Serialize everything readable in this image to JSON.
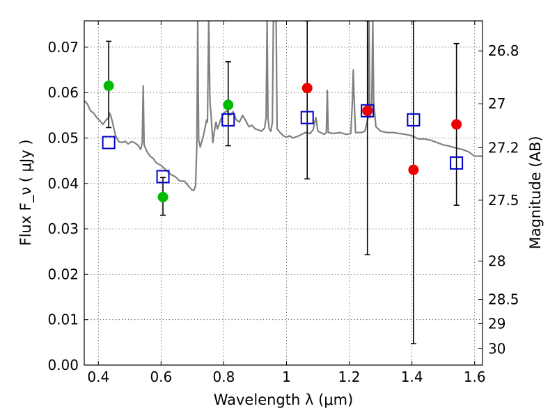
{
  "chart_data": {
    "type": "scatter",
    "title": "",
    "xlabel": "Wavelength  λ (μm)",
    "ylabel": "Flux  F_ν  ( μJy )",
    "ylabel_right": "Magnitude (AB)",
    "xlim": [
      0.355,
      1.625
    ],
    "ylim": [
      0.0,
      0.0758
    ],
    "grid": true,
    "x_ticks": [
      {
        "value": 0.4,
        "label": "0.4"
      },
      {
        "value": 0.6,
        "label": "0.6"
      },
      {
        "value": 0.8,
        "label": "0.8"
      },
      {
        "value": 1.0,
        "label": "1"
      },
      {
        "value": 1.2,
        "label": "1.2"
      },
      {
        "value": 1.4,
        "label": "1.4"
      },
      {
        "value": 1.6,
        "label": "1.6"
      }
    ],
    "y_ticks": [
      {
        "value": 0.0,
        "label": "0.00"
      },
      {
        "value": 0.01,
        "label": "0.01"
      },
      {
        "value": 0.02,
        "label": "0.02"
      },
      {
        "value": 0.03,
        "label": "0.03"
      },
      {
        "value": 0.04,
        "label": "0.04"
      },
      {
        "value": 0.05,
        "label": "0.05"
      },
      {
        "value": 0.06,
        "label": "0.06"
      },
      {
        "value": 0.07,
        "label": "0.07"
      }
    ],
    "right_ticks": [
      {
        "magnitude": 26.8,
        "label": "26.8"
      },
      {
        "magnitude": 27.0,
        "label": "27"
      },
      {
        "magnitude": 27.2,
        "label": "27.2"
      },
      {
        "magnitude": 27.5,
        "label": "27.5"
      },
      {
        "magnitude": 28.0,
        "label": "28"
      },
      {
        "magnitude": 28.5,
        "label": "28.5"
      },
      {
        "magnitude": 29.0,
        "label": "29"
      },
      {
        "magnitude": 30.0,
        "label": "30"
      }
    ],
    "colors": {
      "spectrum": "#808080",
      "green": "#00bb00",
      "red": "#ee0000",
      "model": "#0000cc",
      "errorbar": "#000000",
      "grid": "#555555"
    },
    "series": [
      {
        "type": "line",
        "points": [
          [
            0.355,
            0.0582
          ],
          [
            0.365,
            0.0575
          ],
          [
            0.375,
            0.056
          ],
          [
            0.385,
            0.0555
          ],
          [
            0.395,
            0.0545
          ],
          [
            0.405,
            0.0538
          ],
          [
            0.415,
            0.053
          ],
          [
            0.425,
            0.054
          ],
          [
            0.433,
            0.0545
          ],
          [
            0.436,
            0.0555
          ],
          [
            0.44,
            0.0548
          ],
          [
            0.445,
            0.0535
          ],
          [
            0.455,
            0.0505
          ],
          [
            0.465,
            0.0492
          ],
          [
            0.475,
            0.049
          ],
          [
            0.485,
            0.0493
          ],
          [
            0.495,
            0.0487
          ],
          [
            0.505,
            0.0492
          ],
          [
            0.515,
            0.049
          ],
          [
            0.525,
            0.0485
          ],
          [
            0.535,
            0.0475
          ],
          [
            0.54,
            0.049
          ],
          [
            0.543,
            0.0615
          ],
          [
            0.546,
            0.0485
          ],
          [
            0.555,
            0.047
          ],
          [
            0.565,
            0.046
          ],
          [
            0.575,
            0.0455
          ],
          [
            0.585,
            0.0445
          ],
          [
            0.6,
            0.044
          ],
          [
            0.615,
            0.043
          ],
          [
            0.63,
            0.042
          ],
          [
            0.645,
            0.0415
          ],
          [
            0.66,
            0.0405
          ],
          [
            0.675,
            0.0405
          ],
          [
            0.69,
            0.0392
          ],
          [
            0.7,
            0.0385
          ],
          [
            0.705,
            0.0385
          ],
          [
            0.71,
            0.0395
          ],
          [
            0.714,
            0.0485
          ],
          [
            0.717,
            0.0758
          ],
          [
            0.72,
            0.0495
          ],
          [
            0.725,
            0.048
          ],
          [
            0.735,
            0.0505
          ],
          [
            0.745,
            0.054
          ],
          [
            0.748,
            0.0535
          ],
          [
            0.752,
            0.0758
          ],
          [
            0.756,
            0.058
          ],
          [
            0.76,
            0.0545
          ],
          [
            0.765,
            0.049
          ],
          [
            0.77,
            0.0515
          ],
          [
            0.775,
            0.0535
          ],
          [
            0.78,
            0.052
          ],
          [
            0.79,
            0.054
          ],
          [
            0.8,
            0.0555
          ],
          [
            0.81,
            0.056
          ],
          [
            0.82,
            0.055
          ],
          [
            0.83,
            0.0558
          ],
          [
            0.84,
            0.054
          ],
          [
            0.85,
            0.0535
          ],
          [
            0.86,
            0.055
          ],
          [
            0.87,
            0.0538
          ],
          [
            0.88,
            0.0525
          ],
          [
            0.89,
            0.0528
          ],
          [
            0.9,
            0.052
          ],
          [
            0.91,
            0.0518
          ],
          [
            0.92,
            0.0515
          ],
          [
            0.93,
            0.0522
          ],
          [
            0.935,
            0.0545
          ],
          [
            0.938,
            0.0758
          ],
          [
            0.941,
            0.0545
          ],
          [
            0.945,
            0.052
          ],
          [
            0.95,
            0.0515
          ],
          [
            0.955,
            0.0535
          ],
          [
            0.958,
            0.0758
          ],
          [
            0.961,
            0.0758
          ],
          [
            0.964,
            0.0758
          ],
          [
            0.967,
            0.0758
          ],
          [
            0.97,
            0.052
          ],
          [
            0.98,
            0.0512
          ],
          [
            0.99,
            0.0505
          ],
          [
            1.0,
            0.0502
          ],
          [
            1.01,
            0.0505
          ],
          [
            1.02,
            0.05
          ],
          [
            1.04,
            0.0505
          ],
          [
            1.06,
            0.0512
          ],
          [
            1.075,
            0.051
          ],
          [
            1.085,
            0.0518
          ],
          [
            1.09,
            0.0535
          ],
          [
            1.094,
            0.0545
          ],
          [
            1.1,
            0.0515
          ],
          [
            1.12,
            0.0508
          ],
          [
            1.127,
            0.0512
          ],
          [
            1.13,
            0.0605
          ],
          [
            1.133,
            0.0512
          ],
          [
            1.15,
            0.051
          ],
          [
            1.17,
            0.0512
          ],
          [
            1.19,
            0.0508
          ],
          [
            1.205,
            0.051
          ],
          [
            1.21,
            0.058
          ],
          [
            1.213,
            0.065
          ],
          [
            1.216,
            0.058
          ],
          [
            1.22,
            0.0512
          ],
          [
            1.24,
            0.0512
          ],
          [
            1.25,
            0.0515
          ],
          [
            1.26,
            0.0545
          ],
          [
            1.263,
            0.0758
          ],
          [
            1.266,
            0.0545
          ],
          [
            1.272,
            0.058
          ],
          [
            1.275,
            0.0758
          ],
          [
            1.278,
            0.058
          ],
          [
            1.285,
            0.0525
          ],
          [
            1.3,
            0.0515
          ],
          [
            1.32,
            0.0512
          ],
          [
            1.34,
            0.0512
          ],
          [
            1.36,
            0.051
          ],
          [
            1.38,
            0.0508
          ],
          [
            1.4,
            0.0505
          ],
          [
            1.42,
            0.0498
          ],
          [
            1.44,
            0.0498
          ],
          [
            1.46,
            0.0495
          ],
          [
            1.48,
            0.049
          ],
          [
            1.5,
            0.0485
          ],
          [
            1.52,
            0.0482
          ],
          [
            1.54,
            0.0478
          ],
          [
            1.56,
            0.0475
          ],
          [
            1.58,
            0.047
          ],
          [
            1.6,
            0.046
          ],
          [
            1.625,
            0.046
          ]
        ]
      },
      {
        "type": "scatter",
        "points": [
          {
            "x": 0.433,
            "y": 0.0615,
            "yerr_low": 0.0523,
            "yerr_high": 0.0713
          },
          {
            "x": 0.606,
            "y": 0.037,
            "yerr_low": 0.033,
            "yerr_high": 0.0413
          },
          {
            "x": 0.814,
            "y": 0.0573,
            "yerr_low": 0.0483,
            "yerr_high": 0.0668
          }
        ]
      },
      {
        "type": "scatter",
        "points": [
          {
            "x": 1.066,
            "y": 0.061,
            "yerr_low": 0.041,
            "yerr_high": 0.0758
          },
          {
            "x": 1.258,
            "y": 0.056,
            "yerr_low": 0.0243,
            "yerr_high": 0.0758
          },
          {
            "x": 1.405,
            "y": 0.043,
            "yerr_low": 0.0047,
            "yerr_high": 0.0758
          },
          {
            "x": 1.542,
            "y": 0.053,
            "yerr_low": 0.0352,
            "yerr_high": 0.0708
          }
        ]
      },
      {
        "type": "scatter",
        "points": [
          {
            "x": 0.433,
            "y": 0.049
          },
          {
            "x": 0.606,
            "y": 0.0415
          },
          {
            "x": 0.814,
            "y": 0.054
          },
          {
            "x": 1.066,
            "y": 0.0545
          },
          {
            "x": 1.258,
            "y": 0.056
          },
          {
            "x": 1.405,
            "y": 0.054
          },
          {
            "x": 1.542,
            "y": 0.0445
          }
        ]
      }
    ]
  }
}
